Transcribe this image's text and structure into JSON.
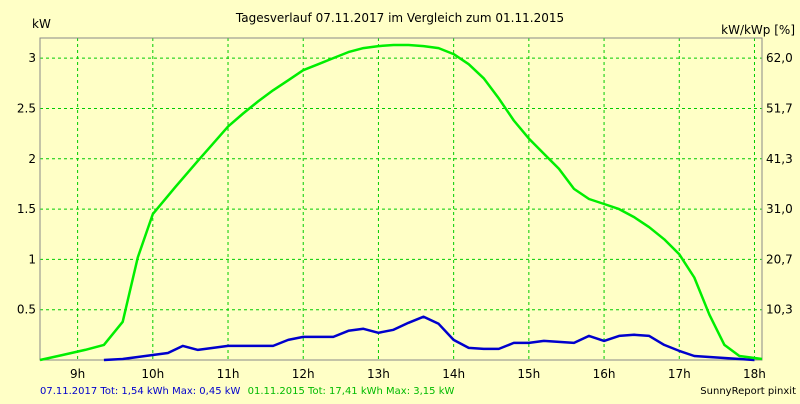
{
  "chart_data": {
    "type": "line",
    "title": "Tagesverlauf 07.11.2017 im Vergleich zum 01.11.2015",
    "ylabel_left": "kW",
    "ylabel_right": "kW/kWp [%]",
    "xlim": [
      8.5,
      18.1
    ],
    "ylim": [
      0,
      3.2
    ],
    "x_ticks": [
      9,
      10,
      11,
      12,
      13,
      14,
      15,
      16,
      17,
      18
    ],
    "x_tick_labels": [
      "9h",
      "10h",
      "11h",
      "12h",
      "13h",
      "14h",
      "15h",
      "16h",
      "17h",
      "18h"
    ],
    "y_ticks": [
      0.5,
      1,
      1.5,
      2,
      2.5,
      3
    ],
    "y_tick_labels": [
      "0.5",
      "1",
      "1.5",
      "2",
      "2.5",
      "3"
    ],
    "y_right_ticks": [
      0.5,
      1,
      1.5,
      2,
      2.5,
      3
    ],
    "y_right_tick_labels": [
      "10,3",
      "20,7",
      "31,0",
      "41,3",
      "51,7",
      "62,0"
    ],
    "grid": true,
    "series": [
      {
        "name": "07.11.2017",
        "color": "#0000CC",
        "x": [
          9.35,
          9.6,
          9.8,
          10.0,
          10.2,
          10.4,
          10.6,
          10.8,
          11.0,
          11.2,
          11.4,
          11.6,
          11.8,
          12.0,
          12.2,
          12.4,
          12.6,
          12.8,
          13.0,
          13.2,
          13.4,
          13.6,
          13.8,
          14.0,
          14.2,
          14.4,
          14.6,
          14.8,
          15.0,
          15.2,
          15.4,
          15.6,
          15.8,
          16.0,
          16.2,
          16.4,
          16.6,
          16.8,
          17.0,
          17.2,
          17.4,
          17.6,
          17.8,
          18.0
        ],
        "y": [
          0.0,
          0.01,
          0.03,
          0.05,
          0.07,
          0.14,
          0.1,
          0.12,
          0.14,
          0.14,
          0.14,
          0.14,
          0.2,
          0.23,
          0.23,
          0.23,
          0.29,
          0.31,
          0.27,
          0.3,
          0.37,
          0.43,
          0.36,
          0.2,
          0.12,
          0.11,
          0.11,
          0.17,
          0.17,
          0.19,
          0.18,
          0.17,
          0.24,
          0.19,
          0.24,
          0.25,
          0.24,
          0.15,
          0.09,
          0.04,
          0.03,
          0.02,
          0.01,
          0.0
        ]
      },
      {
        "name": "01.11.2015",
        "color": "#00EE00",
        "x": [
          8.5,
          8.8,
          9.1,
          9.35,
          9.6,
          9.8,
          10.0,
          10.3,
          10.6,
          10.8,
          11.0,
          11.2,
          11.4,
          11.6,
          11.8,
          12.0,
          12.2,
          12.4,
          12.6,
          12.8,
          13.0,
          13.2,
          13.4,
          13.6,
          13.8,
          14.0,
          14.2,
          14.4,
          14.6,
          14.8,
          15.0,
          15.2,
          15.4,
          15.6,
          15.8,
          16.0,
          16.2,
          16.4,
          16.6,
          16.8,
          17.0,
          17.2,
          17.4,
          17.6,
          17.8,
          18.1
        ],
        "y": [
          0.0,
          0.05,
          0.1,
          0.15,
          0.38,
          1.02,
          1.45,
          1.72,
          1.98,
          2.15,
          2.32,
          2.45,
          2.57,
          2.68,
          2.78,
          2.88,
          2.94,
          3.0,
          3.06,
          3.1,
          3.12,
          3.13,
          3.13,
          3.12,
          3.1,
          3.04,
          2.94,
          2.8,
          2.6,
          2.38,
          2.2,
          2.05,
          1.9,
          1.7,
          1.6,
          1.55,
          1.5,
          1.42,
          1.32,
          1.2,
          1.05,
          0.82,
          0.45,
          0.15,
          0.04,
          0.01
        ]
      }
    ]
  },
  "footer": {
    "left_blue": "07.11.2017 Tot: 1,54 kWh Max: 0,45 kW",
    "left_green": "01.11.2015 Tot: 17,41 kWh Max: 3,15 kW",
    "right": "SunnyReport pinxit"
  },
  "colors": {
    "background": "#FFFFC6",
    "grid": "#00CC00",
    "axis": "#888888"
  }
}
